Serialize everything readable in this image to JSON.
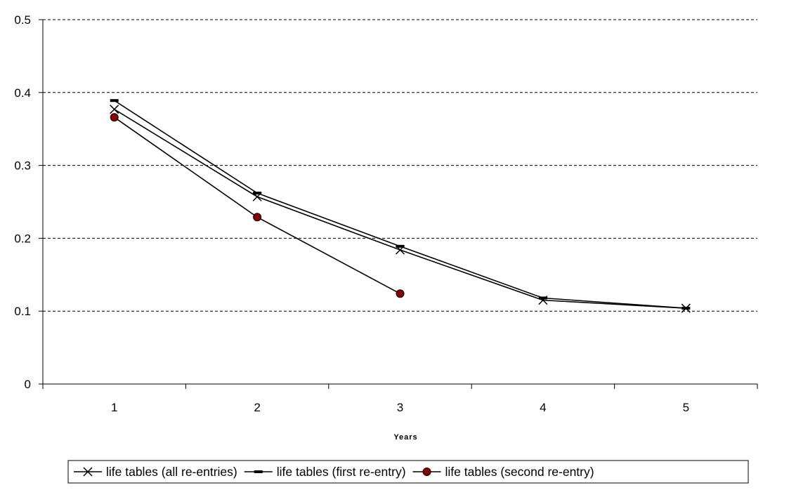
{
  "chart_data": {
    "type": "line",
    "title": "",
    "xlabel": "Years",
    "ylabel": "",
    "categories": [
      "1",
      "2",
      "3",
      "4",
      "5"
    ],
    "ylim": [
      0,
      0.5
    ],
    "yticks": [
      "0",
      "0.1",
      "0.2",
      "0.3",
      "0.4",
      "0.5"
    ],
    "grid": "horizontal dashed",
    "legend_position": "bottom",
    "series": [
      {
        "name": "life tables (all re-entries)",
        "marker": "x",
        "color": "#000000",
        "values": [
          0.377,
          0.257,
          0.184,
          0.115,
          0.104
        ]
      },
      {
        "name": "life tables (first re-entry)",
        "marker": "dash",
        "color": "#000000",
        "values": [
          0.389,
          0.262,
          0.189,
          0.118,
          0.104
        ]
      },
      {
        "name": "life tables (second re-entry)",
        "marker": "circle",
        "color": "#000000",
        "marker_fill": "#8b0000",
        "values": [
          0.366,
          0.229,
          0.124,
          null,
          null
        ]
      }
    ]
  }
}
